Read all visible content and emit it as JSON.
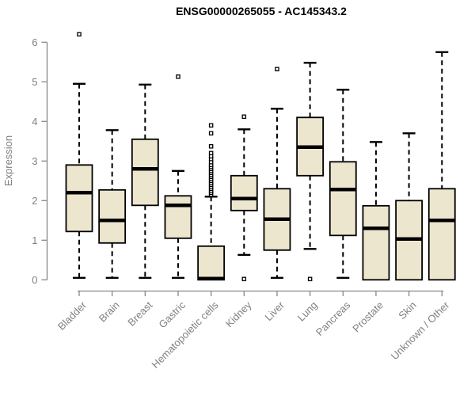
{
  "title": "ENSG00000265055 - AC145343.2",
  "axes": {
    "y_label": "Expression",
    "y_tick_labels": [
      "0",
      "1",
      "2",
      "3",
      "4",
      "5",
      "6"
    ]
  },
  "colors": {
    "box_fill": "#EDE6CF",
    "box_stroke": "#000000",
    "median": "#000000",
    "whisker": "#000000",
    "outlier_fill": "#FFFFFF",
    "outlier_stroke": "#000000",
    "axis_line": "#888888",
    "tick_label": "#808080",
    "title": "#000000",
    "background": "#FFFFFF"
  },
  "chart_data": {
    "type": "boxplot",
    "title": "ENSG00000265055 - AC145343.2",
    "xlabel": "",
    "ylabel": "Expression",
    "ylim": [
      0,
      6.2
    ],
    "yticks": [
      0,
      1,
      2,
      3,
      4,
      5,
      6
    ],
    "grid": false,
    "legend": false,
    "categories": [
      "Bladder",
      "Brain",
      "Breast",
      "Gastric",
      "Hematopoietic cells",
      "Kidney",
      "Liver",
      "Lung",
      "Pancreas",
      "Prostate",
      "Skin",
      "Unknown / Other"
    ],
    "series": [
      {
        "category": "Bladder",
        "whisker_low": 0.05,
        "q1": 1.22,
        "median": 2.2,
        "q3": 2.9,
        "whisker_high": 4.95,
        "outliers": [
          6.2
        ]
      },
      {
        "category": "Brain",
        "whisker_low": 0.05,
        "q1": 0.93,
        "median": 1.5,
        "q3": 2.27,
        "whisker_high": 3.78,
        "outliers": []
      },
      {
        "category": "Breast",
        "whisker_low": 0.05,
        "q1": 1.88,
        "median": 2.8,
        "q3": 3.55,
        "whisker_high": 4.93,
        "outliers": []
      },
      {
        "category": "Gastric",
        "whisker_low": 0.05,
        "q1": 1.05,
        "median": 1.88,
        "q3": 2.12,
        "whisker_high": 2.75,
        "outliers": [
          5.13
        ]
      },
      {
        "category": "Hematopoietic cells",
        "whisker_low": 0.0,
        "q1": 0.0,
        "median": 0.03,
        "q3": 0.85,
        "whisker_high": 2.1,
        "outliers": [
          2.15,
          2.2,
          2.25,
          2.3,
          2.35,
          2.4,
          2.45,
          2.5,
          2.55,
          2.6,
          2.65,
          2.7,
          2.75,
          2.8,
          2.85,
          2.9,
          2.97,
          3.05,
          3.12,
          3.2,
          3.37,
          3.7,
          3.9
        ]
      },
      {
        "category": "Kidney",
        "whisker_low": 0.63,
        "q1": 1.75,
        "median": 2.05,
        "q3": 2.63,
        "whisker_high": 3.8,
        "outliers": [
          4.12,
          0.02
        ]
      },
      {
        "category": "Liver",
        "whisker_low": 0.05,
        "q1": 0.75,
        "median": 1.53,
        "q3": 2.3,
        "whisker_high": 4.32,
        "outliers": [
          5.32
        ]
      },
      {
        "category": "Lung",
        "whisker_low": 0.78,
        "q1": 2.63,
        "median": 3.35,
        "q3": 4.1,
        "whisker_high": 5.48,
        "outliers": [
          0.02
        ]
      },
      {
        "category": "Pancreas",
        "whisker_low": 0.05,
        "q1": 1.12,
        "median": 2.28,
        "q3": 2.98,
        "whisker_high": 4.8,
        "outliers": []
      },
      {
        "category": "Prostate",
        "whisker_low": 0.0,
        "q1": 0.0,
        "median": 1.3,
        "q3": 1.87,
        "whisker_high": 3.48,
        "outliers": []
      },
      {
        "category": "Skin",
        "whisker_low": 0.0,
        "q1": 0.0,
        "median": 1.03,
        "q3": 2.0,
        "whisker_high": 3.7,
        "outliers": []
      },
      {
        "category": "Unknown / Other",
        "whisker_low": 0.0,
        "q1": 0.0,
        "median": 1.5,
        "q3": 2.3,
        "whisker_high": 5.75,
        "outliers": []
      }
    ]
  }
}
